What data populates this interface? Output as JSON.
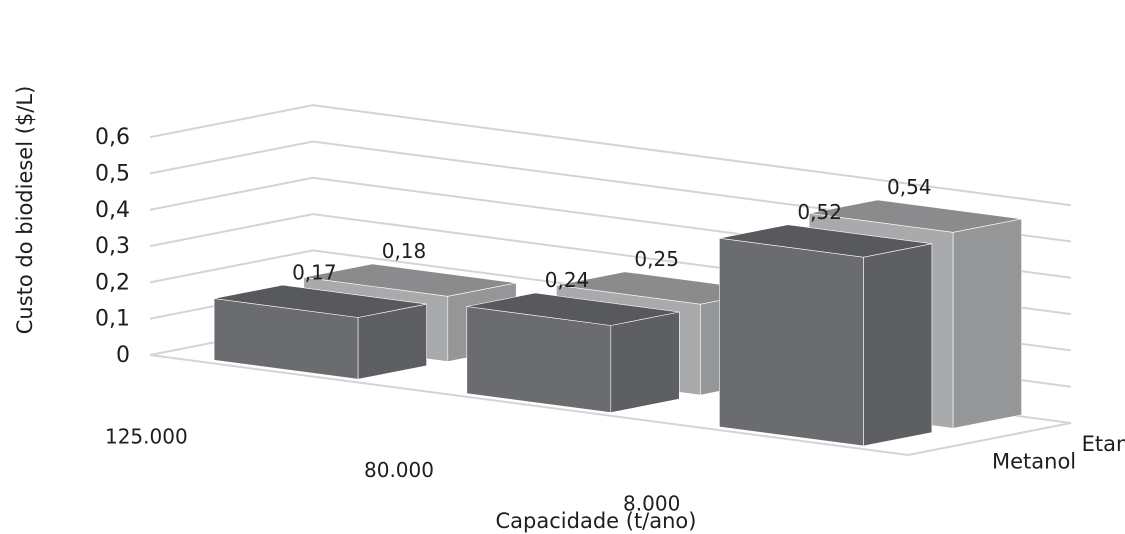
{
  "chart_data": {
    "type": "bar",
    "title": "",
    "xlabel": "Capacidade (t/ano)",
    "ylabel": "Custo do biodiesel ($/L)",
    "ylim": [
      0,
      0.6
    ],
    "yticks": [
      "0",
      "0,1",
      "0,2",
      "0,3",
      "0,4",
      "0,5",
      "0,6"
    ],
    "categories": [
      "125.000",
      "80.000",
      "8.000"
    ],
    "series": [
      {
        "name": "Metanol",
        "values": [
          0.17,
          0.24,
          0.52
        ],
        "labels": [
          "0,17",
          "0,24",
          "0,52"
        ],
        "color": "#6b6c70"
      },
      {
        "name": "Etanol",
        "values": [
          0.18,
          0.25,
          0.54
        ],
        "labels": [
          "0,18",
          "0,25",
          "0,54"
        ],
        "color": "#a9aaac"
      }
    ],
    "grid": true,
    "three_d": true
  }
}
